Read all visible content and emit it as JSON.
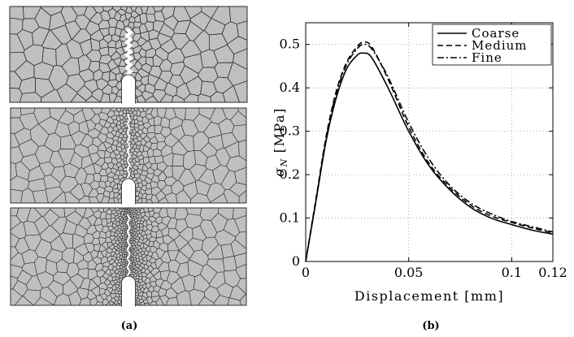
{
  "panel_a": {
    "caption": "(a)",
    "meshes": [
      {
        "name": "Coarse",
        "cell_color": "#bfbfbf",
        "edge_color": "#202020"
      },
      {
        "name": "Medium",
        "cell_color": "#bfbfbf",
        "edge_color": "#202020"
      },
      {
        "name": "Fine",
        "cell_color": "#bfbfbf",
        "edge_color": "#202020"
      }
    ]
  },
  "panel_b": {
    "caption": "(b)"
  },
  "chart_data": {
    "type": "line",
    "xlabel": "Displacement [mm]",
    "ylabel": "σ_N [MPa]",
    "ylabel_main": "σ",
    "ylabel_sub": "N",
    "ylabel_unit": "[MPa]",
    "xlim": [
      0,
      0.12
    ],
    "ylim": [
      0,
      0.55
    ],
    "xticks": [
      0,
      0.05,
      0.1,
      0.12
    ],
    "xtick_labels": [
      "0",
      "0.05",
      "0.1",
      "0.12"
    ],
    "yticks": [
      0,
      0.1,
      0.2,
      0.3,
      0.4,
      0.5
    ],
    "ytick_labels": [
      "0",
      "0.1",
      "0.2",
      "0.3",
      "0.4",
      "0.5"
    ],
    "grid": true,
    "legend_position": "top-right",
    "series": [
      {
        "name": "Coarse",
        "dash": "solid",
        "x": [
          0,
          0.005,
          0.01,
          0.015,
          0.02,
          0.025,
          0.028,
          0.032,
          0.04,
          0.05,
          0.06,
          0.07,
          0.08,
          0.09,
          0.1,
          0.11,
          0.12
        ],
        "y": [
          0,
          0.14,
          0.28,
          0.38,
          0.445,
          0.475,
          0.48,
          0.47,
          0.4,
          0.3,
          0.22,
          0.165,
          0.125,
          0.1,
          0.085,
          0.072,
          0.063
        ]
      },
      {
        "name": "Medium",
        "dash": "dashed",
        "x": [
          0,
          0.005,
          0.01,
          0.015,
          0.02,
          0.025,
          0.028,
          0.032,
          0.04,
          0.05,
          0.06,
          0.07,
          0.08,
          0.09,
          0.1,
          0.11,
          0.12
        ],
        "y": [
          0,
          0.145,
          0.29,
          0.395,
          0.46,
          0.495,
          0.505,
          0.495,
          0.42,
          0.31,
          0.225,
          0.17,
          0.13,
          0.105,
          0.09,
          0.077,
          0.066
        ]
      },
      {
        "name": "Fine",
        "dash": "dashdot",
        "x": [
          0,
          0.005,
          0.01,
          0.015,
          0.02,
          0.025,
          0.028,
          0.032,
          0.04,
          0.05,
          0.06,
          0.07,
          0.08,
          0.09,
          0.1,
          0.11,
          0.12
        ],
        "y": [
          0,
          0.14,
          0.285,
          0.39,
          0.455,
          0.49,
          0.5,
          0.49,
          0.425,
          0.32,
          0.235,
          0.175,
          0.135,
          0.11,
          0.092,
          0.08,
          0.068
        ]
      }
    ]
  }
}
